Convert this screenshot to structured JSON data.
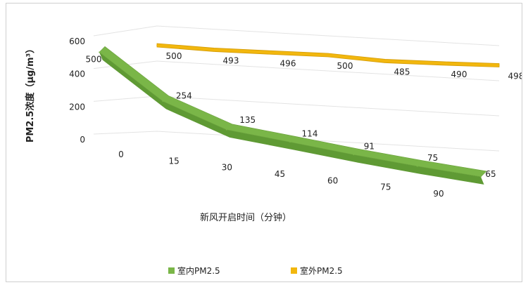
{
  "chart_data": {
    "type": "line",
    "style": "3d-ribbon",
    "title": "",
    "xlabel": "新风开启时间（分钟）",
    "ylabel": "PM2.5浓度（μg/m³）",
    "x": [
      0,
      15,
      30,
      45,
      60,
      75,
      90
    ],
    "x_tick_labels": [
      "0",
      "15",
      "30",
      "45",
      "60",
      "75",
      "90"
    ],
    "y_ticks": [
      0,
      200,
      400,
      600
    ],
    "y_tick_labels": [
      "0",
      "200",
      "400",
      "600"
    ],
    "ylim": [
      0,
      600
    ],
    "grid": true,
    "legend_position": "bottom",
    "series": [
      {
        "name": "室内PM2.5",
        "color": "#7AB648",
        "values": [
          500,
          254,
          135,
          114,
          91,
          75,
          65
        ],
        "data_labels": [
          "500",
          "254",
          "135",
          "114",
          "91",
          "75",
          "65"
        ]
      },
      {
        "name": "室外PM2.5",
        "color": "#F2B70E",
        "values": [
          500,
          493,
          496,
          500,
          485,
          490,
          498
        ],
        "data_labels": [
          "500",
          "493",
          "496",
          "500",
          "485",
          "490",
          "498"
        ]
      }
    ]
  }
}
